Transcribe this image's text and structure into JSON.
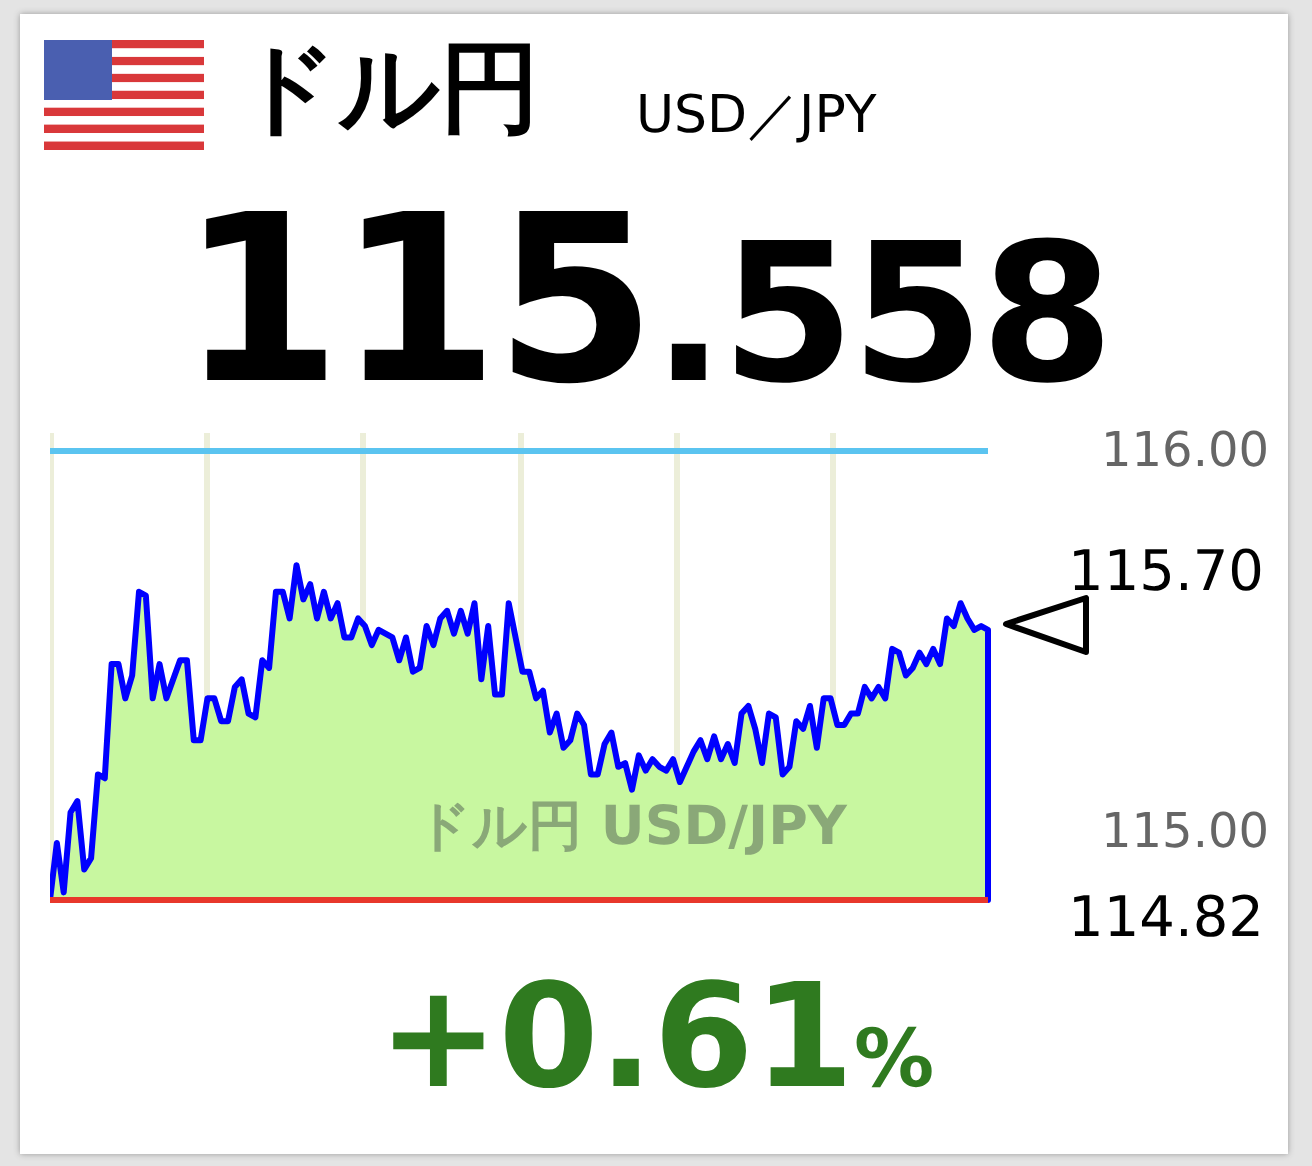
{
  "chart_data": {
    "type": "area",
    "title": "ドル円",
    "subtitle": "USD／JPY",
    "annotations": [
      "115.558",
      "+0.61%",
      "ドル円 USD/JPY",
      "115.70"
    ],
    "categories": [
      null,
      null,
      null,
      null,
      null,
      null,
      null,
      null,
      null,
      null,
      null,
      null,
      null,
      null,
      null,
      null,
      null,
      null,
      null,
      null,
      null,
      null,
      null,
      null,
      null,
      null,
      null,
      null,
      null,
      null,
      null,
      null,
      null,
      null,
      null,
      null,
      null,
      null,
      null,
      null,
      null,
      null,
      null,
      null,
      null,
      null,
      null,
      null,
      null,
      null,
      null,
      null,
      null,
      null,
      null,
      null,
      null,
      null,
      null,
      null,
      null,
      null,
      null,
      null,
      null,
      null,
      null,
      null,
      null,
      null,
      null,
      null,
      null,
      null,
      null,
      null,
      null,
      null,
      null,
      null,
      null,
      null,
      null,
      null,
      null,
      null,
      null,
      null,
      null,
      null,
      null,
      null,
      null,
      null,
      null,
      null,
      null,
      null,
      null,
      null,
      null,
      null,
      null,
      null,
      null,
      null,
      null,
      null,
      null,
      null,
      null,
      null,
      null,
      null,
      null,
      null,
      null,
      null,
      null,
      null,
      null,
      null,
      null,
      null,
      null,
      null,
      null,
      null,
      null,
      null,
      null,
      null,
      null,
      null,
      null,
      null,
      null,
      null
    ],
    "series": [
      {
        "color": "#0000ff",
        "values": [
          114.82,
          114.97,
          114.84,
          115.05,
          115.08,
          114.9,
          114.93,
          115.15,
          115.14,
          115.44,
          115.44,
          115.35,
          115.41,
          115.63,
          115.62,
          115.35,
          115.44,
          115.35,
          115.4,
          115.45,
          115.45,
          115.24,
          115.24,
          115.35,
          115.35,
          115.29,
          115.29,
          115.38,
          115.4,
          115.31,
          115.3,
          115.45,
          115.43,
          115.63,
          115.63,
          115.56,
          115.7,
          115.61,
          115.65,
          115.56,
          115.63,
          115.56,
          115.6,
          115.51,
          115.51,
          115.56,
          115.54,
          115.49,
          115.53,
          115.52,
          115.51,
          115.45,
          115.51,
          115.42,
          115.43,
          115.54,
          115.49,
          115.56,
          115.58,
          115.52,
          115.58,
          115.52,
          115.6,
          115.4,
          115.54,
          115.36,
          115.36,
          115.6,
          115.51,
          115.42,
          115.42,
          115.35,
          115.37,
          115.26,
          115.31,
          115.22,
          115.24,
          115.31,
          115.28,
          115.15,
          115.15,
          115.23,
          115.26,
          115.17,
          115.18,
          115.11,
          115.2,
          115.16,
          115.19,
          115.17,
          115.16,
          115.19,
          115.13,
          115.17,
          115.21,
          115.24,
          115.19,
          115.25,
          115.19,
          115.23,
          115.18,
          115.31,
          115.33,
          115.27,
          115.18,
          115.31,
          115.3,
          115.15,
          115.17,
          115.29,
          115.27,
          115.33,
          115.22,
          115.35,
          115.35,
          115.28,
          115.28,
          115.31,
          115.31,
          115.38,
          115.35,
          115.38,
          115.35,
          115.48,
          115.47,
          115.41,
          115.43,
          115.47,
          115.44,
          115.48,
          115.44,
          115.56,
          115.54,
          115.6,
          115.56,
          115.53,
          115.54,
          115.53
        ]
      }
    ],
    "ylim": [
      114.82,
      116.05
    ],
    "yticks": [
      {
        "value": 116,
        "label": "116.00"
      },
      {
        "value": 115,
        "label": "115.00"
      }
    ],
    "tick_labels": "y",
    "grid": "x",
    "ref_lines": [
      {
        "axis": "y",
        "value": 116,
        "color": "#5bc4f0"
      },
      {
        "axis": "y",
        "value": 114.82,
        "label": "114.82",
        "color": "#e8382b"
      }
    ]
  }
}
